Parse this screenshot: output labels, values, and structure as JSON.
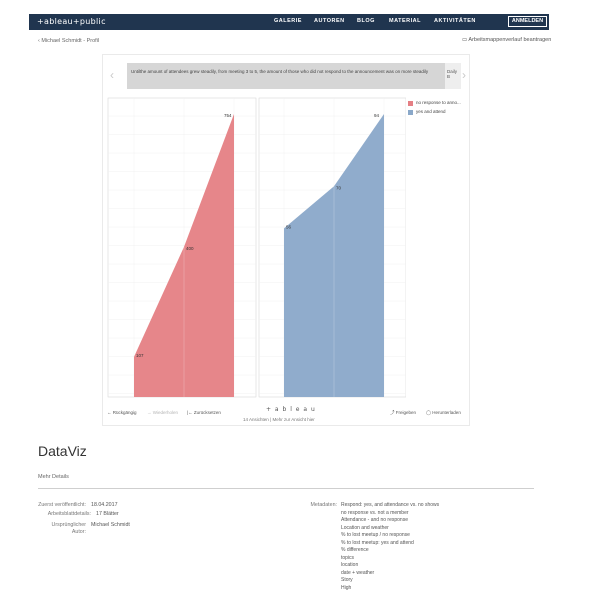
{
  "header": {
    "logo": "+ableau+public",
    "nav": [
      "GALERIE",
      "AUTOREN",
      "BLOG",
      "MATERIAL",
      "AKTIVITÄTEN"
    ],
    "login_label": "ANMELDEN",
    "search_icon": "search-icon"
  },
  "breadcrumb": "‹ Michael Schmidt - Profil",
  "request_link": "Arbeitsmappenverlauf beantragen",
  "story": {
    "caption": "Untilthe amount of attendees grew steadily, from meeting 3 to 5, the amount of those who did not respond to the announcement was on more steadily",
    "next_label": "Daily B"
  },
  "chart_data": {
    "type": "area",
    "panels": [
      {
        "name": "no response to announcement",
        "color": "#e57f84",
        "x": [
          1,
          2,
          3
        ],
        "y": [
          107,
          400,
          754
        ],
        "labels": [
          "107",
          "400",
          "754"
        ]
      },
      {
        "name": "yes and attend",
        "color": "#8aa8c9",
        "x": [
          1,
          2,
          3
        ],
        "y": [
          56,
          70,
          94
        ],
        "labels": [
          "56",
          "70",
          "94"
        ]
      }
    ],
    "legend": [
      "no response to anno...",
      "yes and attend"
    ],
    "legend_position": "top-right",
    "grid": true
  },
  "toolbar": {
    "undo": "Rückgängig",
    "redo": "Wiederholen",
    "reset": "Zurücksetzen",
    "brand": "+ a b l e a u",
    "share": "Freigeben",
    "download": "Herunterladen",
    "footnote": "14 Ansichten | Mehr zur Ansicht hier"
  },
  "details": {
    "title": "DataViz",
    "more_details": "Mehr Details",
    "first_published_label": "Zuerst veröffentlicht:",
    "first_published_value": "18.04.2017",
    "sheets_label": "Arbeitsblattdetails:",
    "sheets_value": "17 Blätter",
    "author_label": "Ursprünglicher",
    "author_label_2": "Autor:",
    "author_value": "Michael Schmidt",
    "metrics_label": "Metadaten:",
    "metrics": [
      "Respond: yes, and attendance vs. no shows",
      "no response vs. not a member",
      "Attendance - and no response",
      "Location and weather",
      "% to lost meetup / no response",
      "% to lost meetup: yes and attend",
      "% difference",
      "topics",
      "location",
      "date + weather",
      "Story",
      "High"
    ]
  }
}
